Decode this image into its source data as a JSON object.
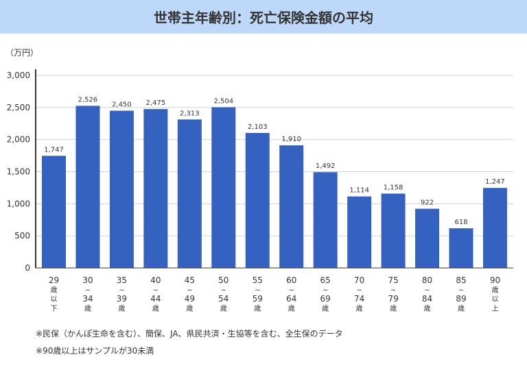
{
  "header": {
    "title": "世帯主年齢別：死亡保険金額の平均"
  },
  "chart_data": {
    "type": "bar",
    "title": "世帯主年齢別：死亡保険金額の平均",
    "ylabel": "（万円）",
    "xlabel": "",
    "ylim": [
      0,
      3000
    ],
    "yticks": [
      0,
      500,
      1000,
      1500,
      2000,
      2500,
      3000
    ],
    "ytick_labels": [
      "0",
      "500",
      "1,000",
      "1,500",
      "2,000",
      "2,500",
      "3,000"
    ],
    "grid": true,
    "bar_color": "#3561c1",
    "categories": [
      [
        "29",
        "歳",
        "以",
        "下"
      ],
      [
        "30",
        "~",
        "34",
        "歳"
      ],
      [
        "35",
        "~",
        "39",
        "歳"
      ],
      [
        "40",
        "~",
        "44",
        "歳"
      ],
      [
        "45",
        "~",
        "49",
        "歳"
      ],
      [
        "50",
        "~",
        "54",
        "歳"
      ],
      [
        "55",
        "~",
        "59",
        "歳"
      ],
      [
        "60",
        "~",
        "64",
        "歳"
      ],
      [
        "65",
        "~",
        "69",
        "歳"
      ],
      [
        "70",
        "~",
        "74",
        "歳"
      ],
      [
        "75",
        "~",
        "79",
        "歳"
      ],
      [
        "80",
        "~",
        "84",
        "歳"
      ],
      [
        "85",
        "~",
        "89",
        "歳"
      ],
      [
        "90",
        "歳",
        "以",
        "上"
      ]
    ],
    "values": [
      1747,
      2526,
      2450,
      2475,
      2313,
      2504,
      2103,
      1910,
      1492,
      1114,
      1158,
      922,
      618,
      1247
    ],
    "data_labels": [
      "1,747",
      "2,526",
      "2,450",
      "2,475",
      "2,313",
      "2,504",
      "2,103",
      "1,910",
      "1,492",
      "1,114",
      "1,158",
      "922",
      "618",
      "1,247"
    ]
  },
  "notes": [
    "※民保（かんぽ生命を含む）、簡保、JA、県民共済・生協等を含む、全生保のデータ",
    "※90歳以上はサンプルが30未満"
  ]
}
